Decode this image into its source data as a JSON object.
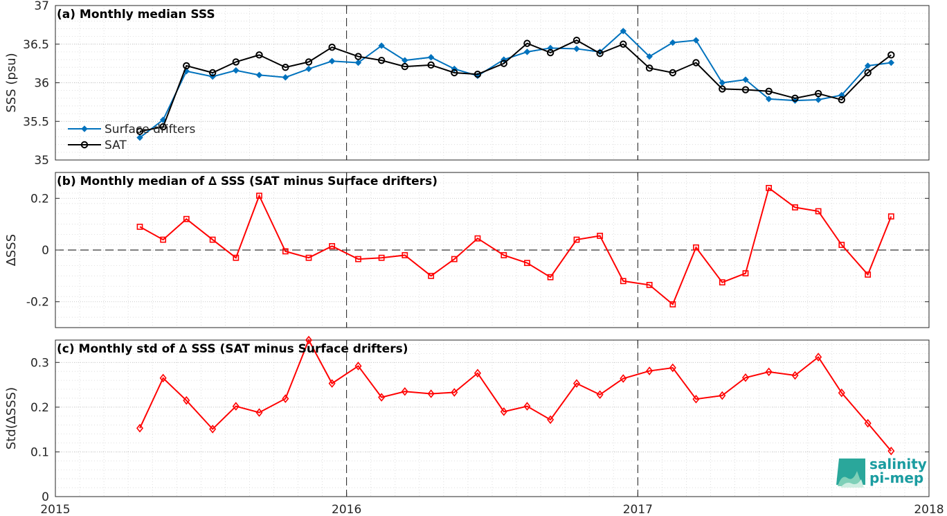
{
  "chart_data": [
    {
      "type": "line",
      "title": "(a) Monthly median SSS",
      "ylabel": "SSS (psu)",
      "ylim": [
        35,
        37
      ],
      "yticks": [
        35,
        35.5,
        36,
        36.5,
        37
      ],
      "ytick_labels": [
        "35",
        "35.5",
        "36",
        "36.5",
        "37"
      ],
      "xlim": [
        2015,
        2018
      ],
      "grid": true,
      "legend": "left",
      "x": [
        2015.29,
        2015.37,
        2015.45,
        2015.54,
        2015.62,
        2015.7,
        2015.79,
        2015.87,
        2015.95,
        2016.04,
        2016.12,
        2016.2,
        2016.29,
        2016.37,
        2016.45,
        2016.54,
        2016.62,
        2016.7,
        2016.79,
        2016.87,
        2016.95,
        2017.04,
        2017.12,
        2017.2,
        2017.29,
        2017.37,
        2017.45,
        2017.54,
        2017.62,
        2017.7,
        2017.79,
        2017.87
      ],
      "series": [
        {
          "name": "Surface drifters",
          "color": "#0072bd",
          "marker": "dot",
          "values": [
            35.29,
            35.52,
            36.15,
            36.08,
            36.16,
            36.1,
            36.07,
            36.18,
            36.28,
            36.26,
            36.48,
            36.29,
            36.33,
            36.18,
            36.09,
            36.3,
            36.4,
            36.45,
            36.44,
            36.4,
            36.67,
            36.34,
            36.52,
            36.55,
            36.0,
            36.04,
            35.79,
            35.77,
            35.78,
            35.84,
            36.22,
            36.26
          ]
        },
        {
          "name": "SAT",
          "color": "#000000",
          "marker": "circle",
          "values": [
            35.37,
            35.43,
            36.22,
            36.13,
            36.27,
            36.36,
            36.2,
            36.27,
            36.46,
            36.34,
            36.29,
            36.21,
            36.23,
            36.13,
            36.11,
            36.25,
            36.51,
            36.39,
            36.55,
            36.38,
            36.5,
            36.19,
            36.13,
            36.26,
            35.92,
            35.91,
            35.89,
            35.8,
            35.86,
            35.78,
            36.13,
            36.36
          ]
        }
      ]
    },
    {
      "type": "line",
      "title": "(b) Monthly median of ∆ SSS (SAT minus Surface drifters)",
      "ylabel": "∆SSS",
      "ylim": [
        -0.3,
        0.3
      ],
      "yticks": [
        -0.2,
        0,
        0.2
      ],
      "ytick_labels": [
        "-0.2",
        "0",
        "0.2"
      ],
      "xlim": [
        2015,
        2018
      ],
      "grid": true,
      "x": [
        2015.29,
        2015.37,
        2015.45,
        2015.54,
        2015.62,
        2015.7,
        2015.79,
        2015.87,
        2015.95,
        2016.04,
        2016.12,
        2016.2,
        2016.29,
        2016.37,
        2016.45,
        2016.54,
        2016.62,
        2016.7,
        2016.79,
        2016.87,
        2016.95,
        2017.04,
        2017.12,
        2017.2,
        2017.29,
        2017.37,
        2017.45,
        2017.54,
        2017.62,
        2017.7,
        2017.79,
        2017.87
      ],
      "series": [
        {
          "color": "#ff0000",
          "marker": "square",
          "values": [
            0.09,
            0.04,
            0.12,
            0.04,
            -0.03,
            0.21,
            -0.005,
            -0.03,
            0.015,
            -0.035,
            -0.03,
            -0.02,
            -0.1,
            -0.035,
            0.045,
            -0.02,
            -0.05,
            -0.105,
            0.04,
            0.055,
            -0.12,
            -0.135,
            -0.21,
            0.01,
            -0.125,
            -0.09,
            0.24,
            0.165,
            0.15,
            0.02,
            -0.095,
            0.13
          ]
        }
      ]
    },
    {
      "type": "line",
      "title": "(c) Monthly std of ∆ SSS (SAT minus Surface drifters)",
      "ylabel": "Std(∆SSS)",
      "ylim": [
        0,
        0.35
      ],
      "yticks": [
        0,
        0.1,
        0.2,
        0.3
      ],
      "ytick_labels": [
        "0",
        "0.1",
        "0.2",
        "0.3"
      ],
      "xlim": [
        2015,
        2018
      ],
      "xticks": [
        2015,
        2016,
        2017,
        2018
      ],
      "xtick_labels": [
        "2015",
        "2016",
        "2017",
        "2018"
      ],
      "grid": true,
      "x": [
        2015.29,
        2015.37,
        2015.45,
        2015.54,
        2015.62,
        2015.7,
        2015.79,
        2015.87,
        2015.95,
        2016.04,
        2016.12,
        2016.2,
        2016.29,
        2016.37,
        2016.45,
        2016.54,
        2016.62,
        2016.7,
        2016.79,
        2016.87,
        2016.95,
        2017.04,
        2017.12,
        2017.2,
        2017.29,
        2017.37,
        2017.45,
        2017.54,
        2017.62,
        2017.7,
        2017.79,
        2017.87
      ],
      "series": [
        {
          "color": "#ff0000",
          "marker": "diamond",
          "values": [
            0.153,
            0.265,
            0.215,
            0.151,
            0.202,
            0.188,
            0.219,
            0.35,
            0.253,
            0.292,
            0.222,
            0.235,
            0.23,
            0.233,
            0.276,
            0.19,
            0.202,
            0.172,
            0.253,
            0.228,
            0.264,
            0.281,
            0.288,
            0.218,
            0.226,
            0.266,
            0.279,
            0.271,
            0.312,
            0.232,
            0.164,
            0.102
          ]
        }
      ]
    }
  ],
  "logo": {
    "line1": "salinity",
    "line2": "pi-mep",
    "color": "#1a9ca0"
  }
}
